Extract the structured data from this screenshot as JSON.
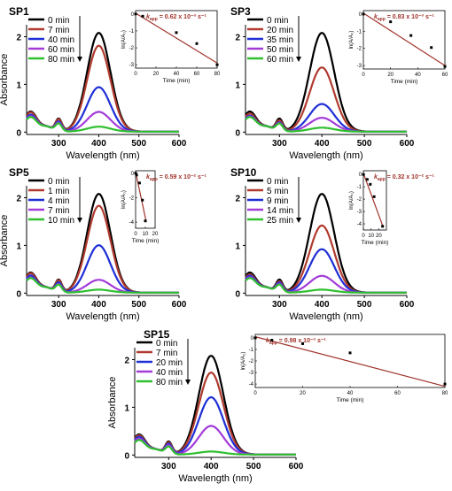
{
  "chart_data": [
    {
      "type": "line",
      "title": "SP1",
      "xlabel": "Wavelength (nm)",
      "ylabel": "Absorbance",
      "xlim": [
        220,
        600
      ],
      "ylim": [
        -0.05,
        2.25
      ],
      "xticks": [
        300,
        400,
        500,
        600
      ],
      "yticks": [
        0,
        1,
        2
      ],
      "series": [
        {
          "name": "0 min",
          "color": "#000000",
          "scale": 1.0
        },
        {
          "name": "7 min",
          "color": "#b03a2e",
          "scale": 0.87
        },
        {
          "name": "40 min",
          "color": "#1f2fd6",
          "scale": 0.45
        },
        {
          "name": "60 min",
          "color": "#a23bd8",
          "scale": 0.2
        },
        {
          "name": "80 min",
          "color": "#2fbf2f",
          "scale": 0.05
        }
      ],
      "inset": {
        "kapp": "0.62 x 10⁻³ s⁻¹",
        "xlabel": "Time (min)",
        "ylabel": "ln(A/A₀)",
        "xlim": [
          0,
          80
        ],
        "ylim": [
          -3.2,
          0.2
        ],
        "xticks": [
          0,
          20,
          40,
          60,
          80
        ],
        "yticks": [
          0,
          -1,
          -2,
          -3
        ],
        "points": [
          [
            0,
            0
          ],
          [
            7,
            -0.13
          ],
          [
            40,
            -1.1
          ],
          [
            60,
            -1.75
          ],
          [
            80,
            -3.0
          ]
        ],
        "fit": [
          [
            0,
            0.05
          ],
          [
            80,
            -2.9
          ]
        ]
      }
    },
    {
      "type": "line",
      "title": "SP3",
      "xlabel": "Wavelength (nm)",
      "ylabel": "",
      "xlim": [
        220,
        600
      ],
      "ylim": [
        -0.05,
        2.25
      ],
      "xticks": [
        300,
        400,
        500,
        600
      ],
      "yticks": [
        0,
        1,
        2
      ],
      "series": [
        {
          "name": "0 min",
          "color": "#000000",
          "scale": 1.0
        },
        {
          "name": "20 min",
          "color": "#b03a2e",
          "scale": 0.65
        },
        {
          "name": "35 min",
          "color": "#1f2fd6",
          "scale": 0.28
        },
        {
          "name": "50 min",
          "color": "#a23bd8",
          "scale": 0.14
        },
        {
          "name": "60 min",
          "color": "#2fbf2f",
          "scale": 0.04
        }
      ],
      "inset": {
        "kapp": "0.83 x 10⁻³ s⁻¹",
        "xlabel": "Time (min)",
        "ylabel": "ln(A/A₀)",
        "xlim": [
          0,
          60
        ],
        "ylim": [
          -3.2,
          0.2
        ],
        "xticks": [
          0,
          20,
          40,
          60
        ],
        "yticks": [
          0,
          -1,
          -2,
          -3
        ],
        "points": [
          [
            0,
            0
          ],
          [
            20,
            -0.45
          ],
          [
            35,
            -1.25
          ],
          [
            50,
            -1.95
          ],
          [
            60,
            -3.05
          ]
        ],
        "fit": [
          [
            0,
            0.05
          ],
          [
            60,
            -3.0
          ]
        ]
      }
    },
    {
      "type": "line",
      "title": "SP5",
      "xlabel": "Wavelength (nm)",
      "ylabel": "Absorbance",
      "xlim": [
        220,
        600
      ],
      "ylim": [
        -0.05,
        2.25
      ],
      "xticks": [
        300,
        400,
        500,
        600
      ],
      "yticks": [
        0,
        1,
        2
      ],
      "series": [
        {
          "name": "0 min",
          "color": "#000000",
          "scale": 1.0
        },
        {
          "name": "1 min",
          "color": "#b03a2e",
          "scale": 0.88
        },
        {
          "name": "4 min",
          "color": "#1f2fd6",
          "scale": 0.48
        },
        {
          "name": "7 min",
          "color": "#a23bd8",
          "scale": 0.13
        },
        {
          "name": "10 min",
          "color": "#2fbf2f",
          "scale": 0.03
        }
      ],
      "inset": {
        "kapp": "0.59 x 10⁻² s⁻¹",
        "xlabel": "Time (min)",
        "ylabel": "ln(A/A₀)",
        "xlim": [
          0,
          20
        ],
        "ylim": [
          -4.5,
          0.2
        ],
        "xticks": [
          0,
          10,
          20
        ],
        "yticks": [
          0,
          -2,
          -4
        ],
        "points": [
          [
            0,
            0
          ],
          [
            1,
            -0.15
          ],
          [
            4,
            -0.8
          ],
          [
            7,
            -2.2
          ],
          [
            10,
            -3.9
          ]
        ],
        "fit": [
          [
            0,
            0.1
          ],
          [
            11,
            -4.0
          ]
        ]
      }
    },
    {
      "type": "line",
      "title": "SP10",
      "xlabel": "Wavelength (nm)",
      "ylabel": "",
      "xlim": [
        220,
        600
      ],
      "ylim": [
        -0.05,
        2.25
      ],
      "xticks": [
        300,
        400,
        500,
        600
      ],
      "yticks": [
        0,
        1,
        2
      ],
      "series": [
        {
          "name": "0 min",
          "color": "#000000",
          "scale": 1.0
        },
        {
          "name": "5 min",
          "color": "#b03a2e",
          "scale": 0.68
        },
        {
          "name": "9 min",
          "color": "#1f2fd6",
          "scale": 0.44
        },
        {
          "name": "14 min",
          "color": "#a23bd8",
          "scale": 0.17
        },
        {
          "name": "25 min",
          "color": "#2fbf2f",
          "scale": 0.03
        }
      ],
      "inset": {
        "kapp": "0.32 x 10⁻² s⁻¹",
        "xlabel": "Time (min)",
        "ylabel": "ln(A/A₀)",
        "xlim": [
          0,
          30
        ],
        "ylim": [
          -4.5,
          0.3
        ],
        "xticks": [
          0,
          10,
          20
        ],
        "yticks": [
          0,
          -1,
          -2,
          -3,
          -4
        ],
        "points": [
          [
            0,
            0
          ],
          [
            5,
            -0.4
          ],
          [
            9,
            -0.8
          ],
          [
            14,
            -1.8
          ],
          [
            25,
            -4.2
          ]
        ],
        "fit": [
          [
            0,
            0.1
          ],
          [
            26,
            -4.3
          ]
        ]
      }
    },
    {
      "type": "line",
      "title": "SP15",
      "xlabel": "Wavelength (nm)",
      "ylabel": "Absorbance",
      "xlim": [
        220,
        600
      ],
      "ylim": [
        -0.05,
        2.25
      ],
      "xticks": [
        300,
        400,
        500,
        600
      ],
      "yticks": [
        0,
        1,
        2
      ],
      "series": [
        {
          "name": "0 min",
          "color": "#000000",
          "scale": 1.0
        },
        {
          "name": "7 min",
          "color": "#b03a2e",
          "scale": 0.83
        },
        {
          "name": "20 min",
          "color": "#1f2fd6",
          "scale": 0.58
        },
        {
          "name": "40 min",
          "color": "#a23bd8",
          "scale": 0.29
        },
        {
          "name": "80 min",
          "color": "#2fbf2f",
          "scale": 0.03
        }
      ],
      "inset": {
        "kapp": "0.98 x 10⁻³ s⁻¹",
        "xlabel": "Time (min)",
        "ylabel": "ln(A/A₀)",
        "xlim": [
          0,
          80
        ],
        "ylim": [
          -4.3,
          0.3
        ],
        "xticks": [
          0,
          20,
          40,
          60,
          80
        ],
        "yticks": [
          0,
          -1,
          -2,
          -3,
          -4
        ],
        "points": [
          [
            0,
            0
          ],
          [
            7,
            -0.2
          ],
          [
            20,
            -0.5
          ],
          [
            40,
            -1.3
          ],
          [
            80,
            -4.0
          ]
        ],
        "fit": [
          [
            0,
            0.1
          ],
          [
            80,
            -4.2
          ]
        ]
      }
    }
  ]
}
